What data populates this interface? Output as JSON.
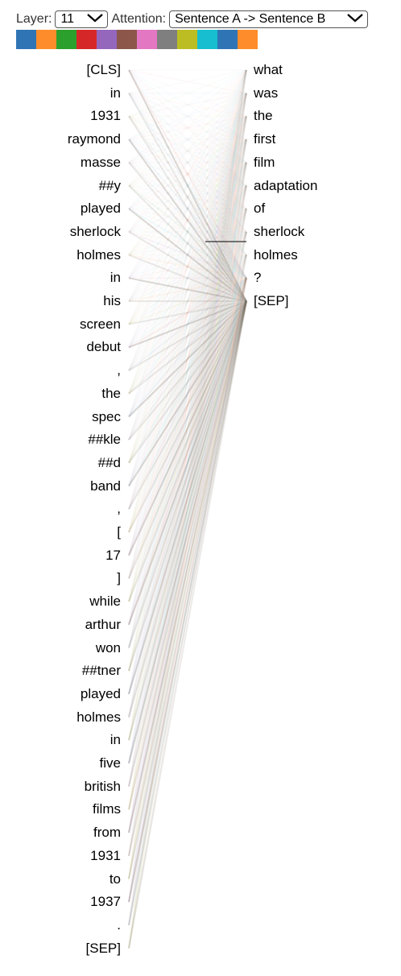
{
  "controls": {
    "layer_label": "Layer:",
    "layer_value": "11",
    "attention_label": "Attention:",
    "attention_value": "Sentence A -> Sentence B"
  },
  "head_colors": [
    "#2f75b5",
    "#ff8c2a",
    "#2ca02c",
    "#d62728",
    "#9467bd",
    "#8c564b",
    "#e377c2",
    "#7f7f7f",
    "#bcbd22",
    "#17becf",
    "#2f75b5",
    "#ff8c2a"
  ],
  "tokens_left": [
    "[CLS]",
    "in",
    "1931",
    "raymond",
    "masse",
    "##y",
    "played",
    "sherlock",
    "holmes",
    "in",
    "his",
    "screen",
    "debut",
    ",",
    "the",
    "spec",
    "##kle",
    "##d",
    "band",
    ",",
    "[",
    "17",
    "]",
    "while",
    "arthur",
    "won",
    "##tner",
    "played",
    "holmes",
    "in",
    "five",
    "british",
    "films",
    "from",
    "1931",
    "to",
    "1937",
    ".",
    "[SEP]"
  ],
  "tokens_right": [
    "what",
    "was",
    "the",
    "first",
    "film",
    "adaptation",
    "of",
    "sherlock",
    "holmes",
    "?",
    "[SEP]"
  ]
}
